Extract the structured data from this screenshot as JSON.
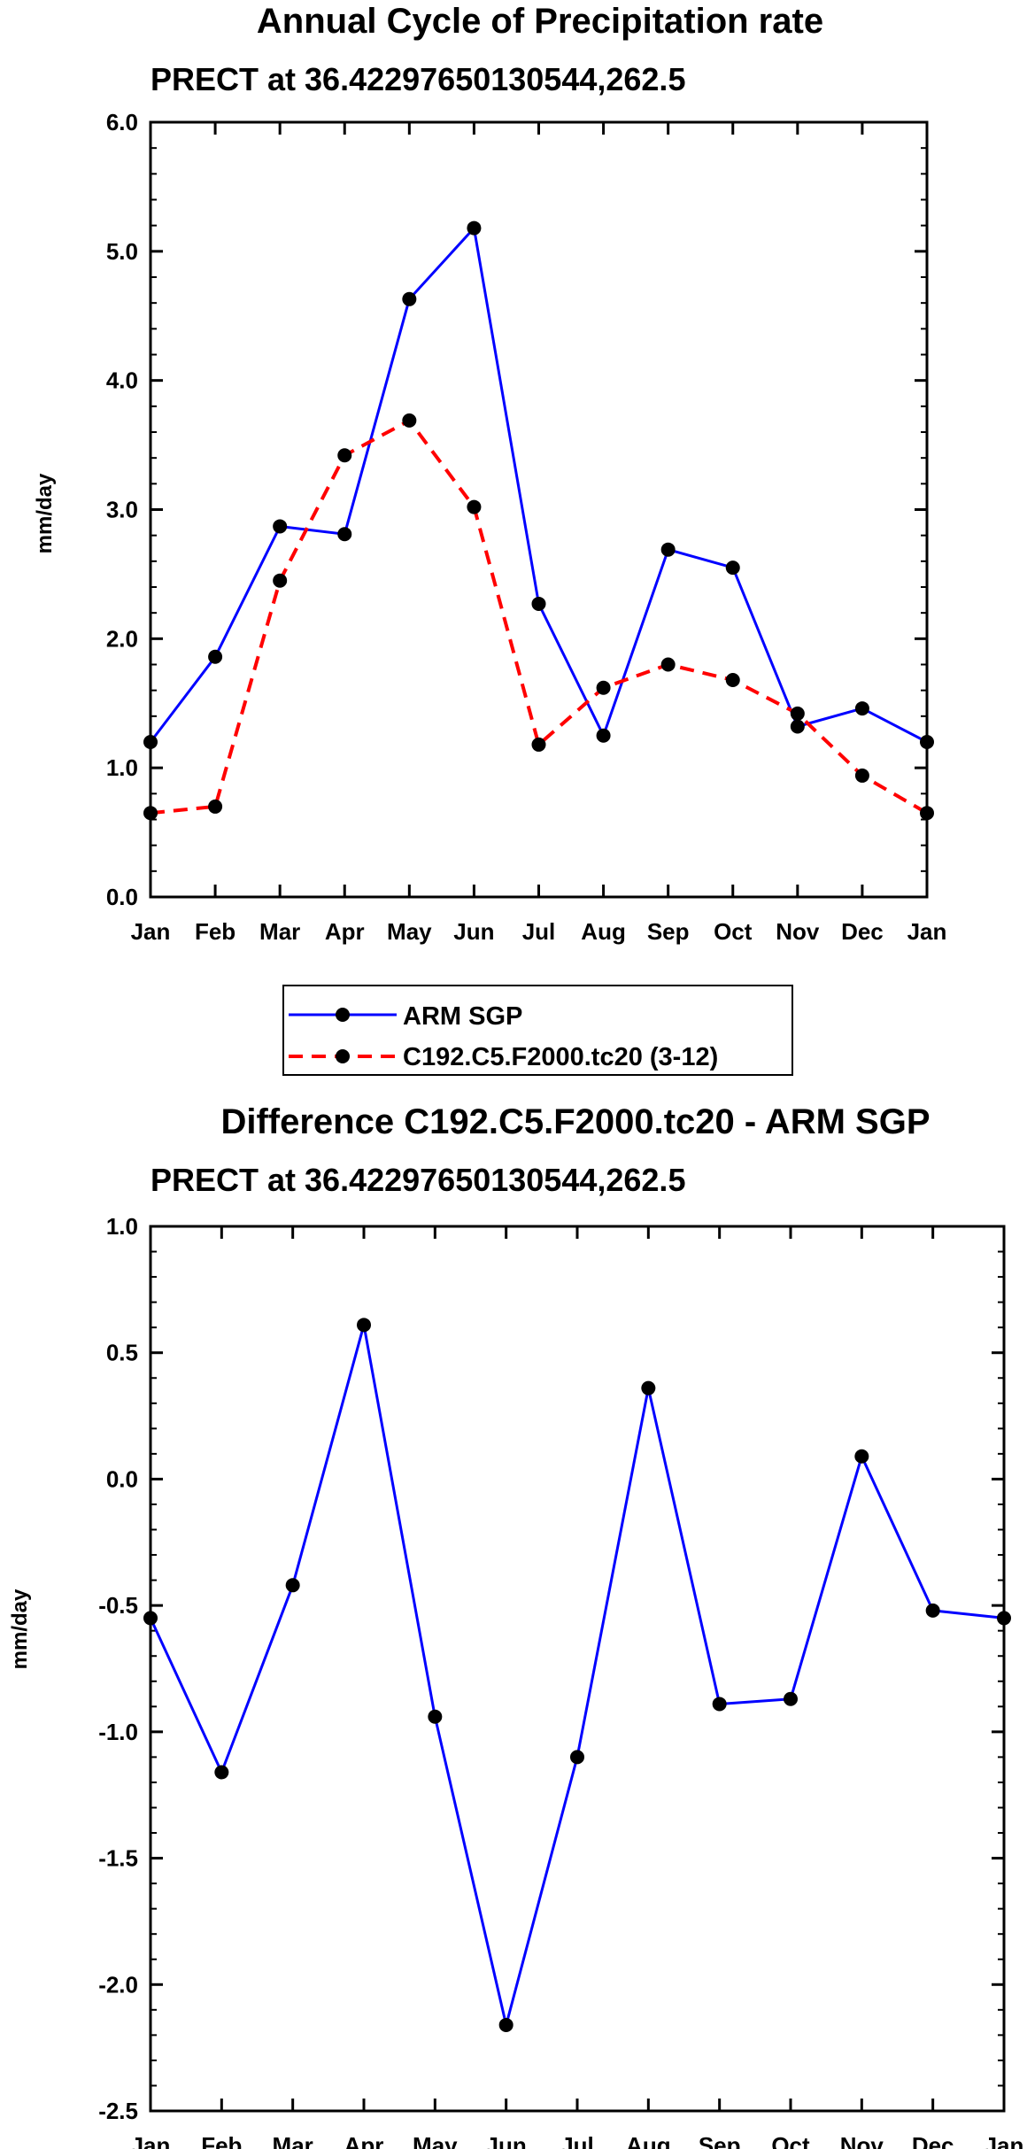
{
  "chart_data": [
    {
      "type": "line",
      "title": "Annual Cycle of Precipitation rate",
      "subtitle": "PRECT at 36.42297650130544,262.5",
      "xlabel": "",
      "ylabel": "mm/day",
      "categories": [
        "Jan",
        "Feb",
        "Mar",
        "Apr",
        "May",
        "Jun",
        "Jul",
        "Aug",
        "Sep",
        "Oct",
        "Nov",
        "Dec",
        "Jan"
      ],
      "ylim": [
        0.0,
        6.0
      ],
      "yticks": [
        "0.0",
        "1.0",
        "2.0",
        "3.0",
        "4.0",
        "5.0",
        "6.0"
      ],
      "series": [
        {
          "name": "ARM SGP",
          "color": "#0000ff",
          "dash": "solid",
          "values": [
            1.2,
            1.86,
            2.87,
            2.81,
            4.63,
            5.18,
            2.27,
            1.25,
            2.69,
            2.55,
            1.32,
            1.46,
            1.2
          ]
        },
        {
          "name": "C192.C5.F2000.tc20 (3-12)",
          "color": "#ff0000",
          "dash": "dashed",
          "values": [
            0.65,
            0.7,
            2.45,
            3.42,
            3.69,
            3.02,
            1.18,
            1.62,
            1.8,
            1.68,
            1.42,
            0.94,
            0.65
          ]
        }
      ],
      "legend": "below"
    },
    {
      "type": "line",
      "title": "Difference C192.C5.F2000.tc20 - ARM SGP",
      "subtitle": "PRECT at 36.42297650130544,262.5",
      "xlabel": "",
      "ylabel": "mm/day",
      "categories": [
        "Jan",
        "Feb",
        "Mar",
        "Apr",
        "May",
        "Jun",
        "Jul",
        "Aug",
        "Sep",
        "Oct",
        "Nov",
        "Dec",
        "Jan"
      ],
      "ylim": [
        -2.5,
        1.0
      ],
      "yticks": [
        "-2.5",
        "-2.0",
        "-1.5",
        "-1.0",
        "-0.5",
        "0.0",
        "0.5",
        "1.0"
      ],
      "series": [
        {
          "name": "Difference",
          "color": "#0000ff",
          "dash": "solid",
          "values": [
            -0.55,
            -1.16,
            -0.42,
            0.61,
            -0.94,
            -2.16,
            -1.1,
            0.36,
            -0.89,
            -0.87,
            0.09,
            -0.52,
            -0.55
          ]
        }
      ]
    }
  ]
}
